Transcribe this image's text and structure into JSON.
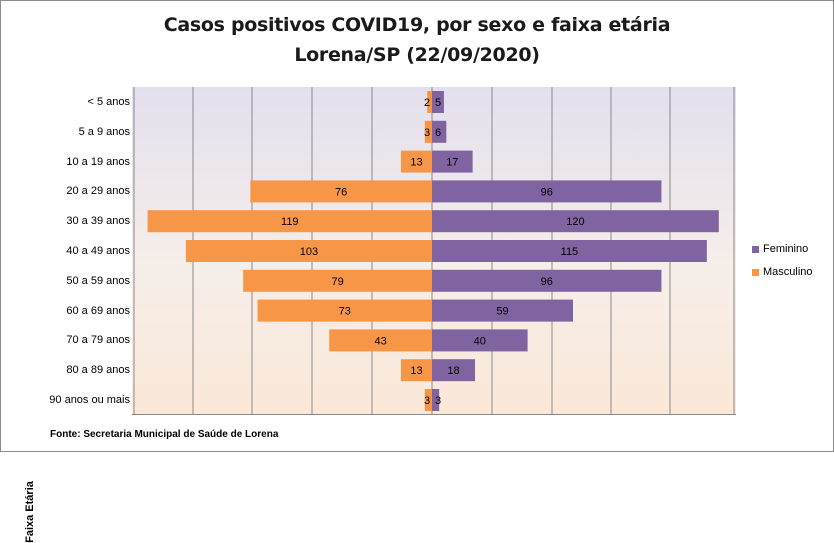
{
  "chart_data": {
    "type": "bar",
    "orientation": "horizontal-diverging",
    "title_line1": "Casos positivos COVID19, por sexo e faixa etária",
    "title_line2": "Lorena/SP (22/09/2020)",
    "ylabel": "Faixa Etária",
    "xlim": [
      -120,
      120
    ],
    "categories": [
      "< 5 anos",
      "5 a 9 anos",
      "10 a 19 anos",
      "20 a 29 anos",
      "30 a 39 anos",
      "40 a 49 anos",
      "50 a 59 anos",
      "60 a 69 anos",
      "70 a 79 anos",
      "80 a 89 anos",
      "90 anos ou mais"
    ],
    "series": [
      {
        "name": "Feminino",
        "color": "#8064a2",
        "side": "right",
        "values": [
          5,
          6,
          17,
          96,
          120,
          115,
          96,
          59,
          40,
          18,
          3
        ]
      },
      {
        "name": "Masculino",
        "color": "#f79646",
        "side": "left",
        "values": [
          2,
          3,
          13,
          76,
          119,
          103,
          79,
          73,
          43,
          13,
          3
        ]
      }
    ],
    "legend_position": "right",
    "source": "Fonte: Secretaria Municipal  de Saúde de Lorena"
  }
}
